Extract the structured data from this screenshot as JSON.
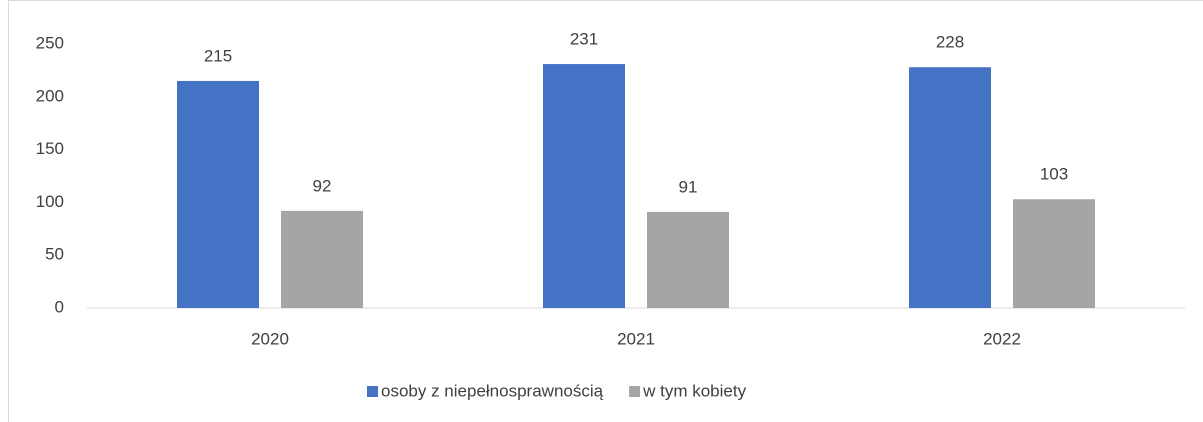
{
  "chart_data": {
    "type": "bar",
    "categories": [
      "2020",
      "2021",
      "2022"
    ],
    "series": [
      {
        "name": "osoby z niepełnosprawnością",
        "color": "#4472c4",
        "values": [
          215,
          231,
          228
        ]
      },
      {
        "name": "w tym kobiety",
        "color": "#a5a5a5",
        "values": [
          92,
          91,
          103
        ]
      }
    ],
    "ylim": [
      0,
      250
    ],
    "yticks": [
      0,
      50,
      100,
      150,
      200,
      250
    ],
    "grid": false,
    "legend": "bottom"
  }
}
